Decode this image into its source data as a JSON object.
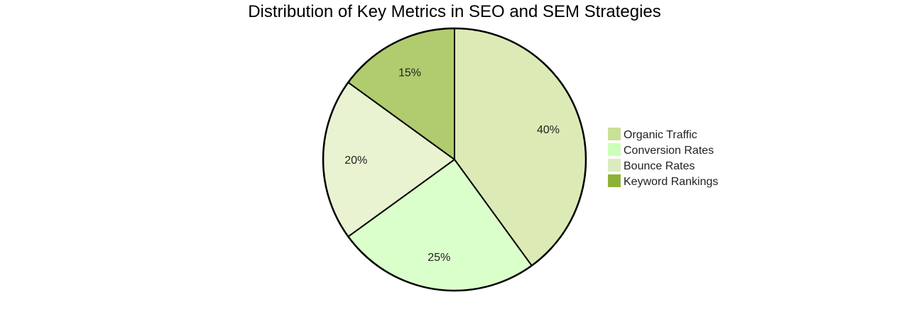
{
  "chart_data": {
    "type": "pie",
    "title": "Distribution of Key Metrics in SEO and SEM Strategies",
    "slices": [
      {
        "label": "Organic Traffic",
        "value": 40,
        "percent_label": "40%",
        "color": "#dcebb6",
        "legend_color": "#c9e196"
      },
      {
        "label": "Conversion Rates",
        "value": 25,
        "percent_label": "25%",
        "color": "#dbffcb",
        "legend_color": "#ccffb9"
      },
      {
        "label": "Bounce Rates",
        "value": 20,
        "percent_label": "20%",
        "color": "#e9f3d2",
        "legend_color": "#dbebc0"
      },
      {
        "label": "Keyword Rankings",
        "value": 15,
        "percent_label": "15%",
        "color": "#b0cc6f",
        "legend_color": "#8db336"
      }
    ],
    "legend_position": "right"
  }
}
